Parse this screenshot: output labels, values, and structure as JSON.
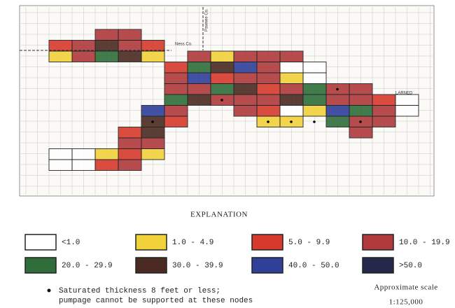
{
  "map": {
    "labels": {
      "ness": "Ness Co.",
      "pawnee": "Pawnee Co.",
      "larned": "LARNED"
    },
    "explanation": "EXPLANATION",
    "legend": [
      {
        "label": "<1.0",
        "color": "#ffffff"
      },
      {
        "label": "1.0 - 4.9",
        "color": "#f2d23a"
      },
      {
        "label": "5.0 - 9.9",
        "color": "#d63a2c"
      },
      {
        "label": "10.0 - 19.9",
        "color": "#b03a3c"
      },
      {
        "label": "20.0 - 29.9",
        "color": "#2f6e3a"
      },
      {
        "label": "30.0 - 39.9",
        "color": "#4a2a22"
      },
      {
        "label": "40.0 - 50.0",
        "color": "#2f3f9a"
      },
      {
        "label": ">50.0",
        "color": "#25284a"
      }
    ],
    "note": [
      "Saturated thickness 8 feet or less;",
      "pumpage cannot be supported at these nodes"
    ],
    "scale": {
      "title": "Approximate scale",
      "value": "1:125,000"
    }
  }
}
